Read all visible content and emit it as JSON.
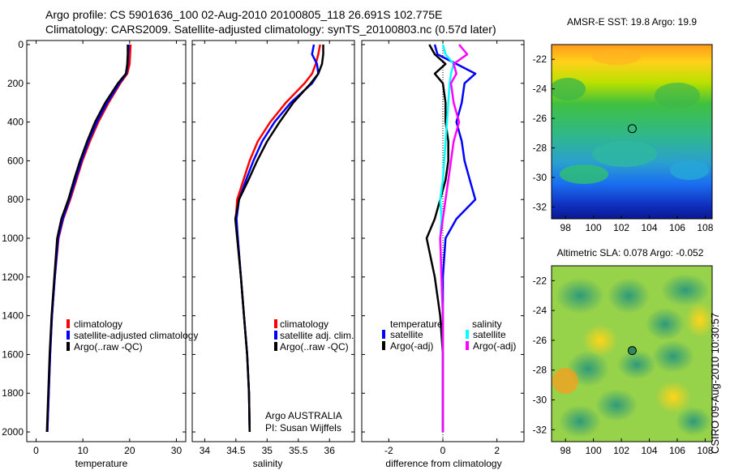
{
  "header": {
    "title_line1": "Argo profile: CS 5901636_100 02-Aug-2010 20100805_118 26.691S 102.775E",
    "title_line2": "Climatology: CARS2009. Satellite-adjusted climatology: synTS_20100803.nc (0.57d later)"
  },
  "footer": {
    "credit": "CSIRO 09-Aug-2010 10:30:57"
  },
  "colors": {
    "climatology": "#ff0000",
    "satellite": "#0000ff",
    "argo": "#000000",
    "salinity_satellite": "#00ffff",
    "salinity_argo_adj": "#ff00ff"
  },
  "chart_data": [
    {
      "type": "line",
      "xlabel": "temperature",
      "ylabel": "",
      "xlim": [
        -2,
        32
      ],
      "ylim": [
        2050,
        0
      ],
      "xticks": [
        0,
        10,
        20,
        30
      ],
      "yticks": [
        0,
        200,
        400,
        600,
        800,
        1000,
        1200,
        1400,
        1600,
        1800,
        2000
      ],
      "depth": [
        0,
        50,
        100,
        150,
        200,
        300,
        400,
        500,
        600,
        700,
        800,
        900,
        1000,
        1200,
        1400,
        1600,
        1800,
        2000
      ],
      "series": [
        {
          "name": "climatology",
          "values": [
            20.2,
            20.1,
            20.0,
            19.5,
            18.0,
            15.5,
            13.3,
            11.5,
            9.9,
            8.6,
            7.3,
            5.8,
            4.8,
            4.0,
            3.4,
            3.0,
            2.7,
            2.4
          ]
        },
        {
          "name": "satellite-adjusted climatology",
          "values": [
            19.8,
            19.7,
            19.6,
            19.3,
            17.8,
            15.2,
            13.0,
            11.2,
            9.7,
            8.4,
            7.1,
            5.7,
            4.7,
            4.0,
            3.4,
            3.0,
            2.7,
            2.4
          ]
        },
        {
          "name": "Argo(..raw -QC)",
          "values": [
            19.6,
            19.6,
            19.5,
            19.2,
            17.5,
            14.8,
            12.6,
            10.9,
            9.4,
            8.1,
            6.9,
            5.4,
            4.5,
            3.9,
            3.3,
            2.9,
            2.6,
            2.3
          ]
        }
      ],
      "legend": [
        "climatology",
        "satellite-adjusted climatology",
        "Argo(..raw -QC)"
      ]
    },
    {
      "type": "line",
      "xlabel": "salinity",
      "ylabel": "",
      "xlim": [
        33.8,
        36.4
      ],
      "ylim": [
        2050,
        0
      ],
      "xticks": [
        34,
        34.5,
        35,
        35.5,
        36
      ],
      "xtick_labels": [
        "34",
        "34.5",
        "35",
        "35.5",
        "36"
      ],
      "depth": [
        0,
        50,
        100,
        150,
        200,
        300,
        400,
        500,
        600,
        700,
        800,
        900,
        1000,
        1200,
        1400,
        1600,
        1800,
        2000
      ],
      "series": [
        {
          "name": "climatology",
          "values": [
            35.85,
            35.82,
            35.78,
            35.72,
            35.6,
            35.3,
            35.05,
            34.85,
            34.72,
            34.62,
            34.52,
            34.5,
            34.53,
            34.58,
            34.63,
            34.68,
            34.71,
            34.72
          ]
        },
        {
          "name": "satellite adj. clim.",
          "values": [
            35.75,
            35.72,
            35.8,
            35.82,
            35.72,
            35.38,
            35.12,
            34.92,
            34.78,
            34.66,
            34.55,
            34.51,
            34.53,
            34.58,
            34.63,
            34.68,
            34.71,
            34.72
          ]
        },
        {
          "name": "Argo(..raw -QC)",
          "values": [
            35.9,
            35.9,
            35.88,
            35.82,
            35.7,
            35.42,
            35.2,
            35.0,
            34.84,
            34.7,
            34.55,
            34.49,
            34.52,
            34.58,
            34.63,
            34.68,
            34.71,
            34.72
          ]
        }
      ],
      "legend": [
        "climatology",
        "satellite adj. clim.",
        "Argo(..raw -QC)"
      ],
      "annotations": [
        "Argo AUSTRALIA",
        "PI: Susan Wijffels"
      ]
    },
    {
      "type": "line",
      "xlabel": "difference from climatology",
      "ylabel": "",
      "xlim": [
        -3,
        3
      ],
      "ylim": [
        2050,
        0
      ],
      "xticks": [
        -2,
        0,
        2
      ],
      "depth": [
        0,
        50,
        100,
        150,
        200,
        300,
        400,
        500,
        600,
        700,
        800,
        900,
        1000,
        1200,
        1400,
        1600,
        1800,
        2000
      ],
      "series": [
        {
          "name": "temperature satellite",
          "values": [
            -0.3,
            -0.2,
            0.5,
            1.2,
            0.8,
            0.7,
            0.5,
            0.7,
            0.8,
            1.0,
            1.2,
            0.5,
            0.1,
            0.0,
            0.0,
            0.0,
            0.0,
            0.0
          ]
        },
        {
          "name": "temperature Argo(-adj)",
          "values": [
            -0.5,
            -0.3,
            0.1,
            -0.3,
            0.0,
            0.1,
            0.1,
            0.2,
            0.2,
            0.1,
            -0.1,
            -0.3,
            -0.6,
            -0.3,
            -0.1,
            0.0,
            0.0,
            0.0
          ]
        },
        {
          "name": "salinity satellite",
          "values": [
            0.0,
            0.1,
            0.4,
            0.3,
            0.25,
            0.2,
            0.15,
            0.1,
            0.05,
            0.0,
            -0.1,
            -0.05,
            -0.1,
            -0.05,
            0.0,
            0.0,
            0.0,
            0.0
          ]
        },
        {
          "name": "salinity Argo(-adj)",
          "values": [
            0.6,
            0.9,
            0.4,
            0.5,
            0.3,
            0.4,
            0.6,
            0.4,
            0.3,
            0.2,
            0.1,
            0.0,
            -0.1,
            -0.05,
            0.0,
            0.0,
            0.0,
            0.0
          ]
        }
      ],
      "legend_headings": [
        "temperature",
        "salinity"
      ],
      "legend": [
        "satellite",
        "Argo(-adj)",
        "satellite",
        "Argo(-adj)"
      ]
    },
    {
      "type": "heatmap",
      "title": "AMSR-E SST: 19.8 Argo: 19.9",
      "xlim": [
        97,
        108.5
      ],
      "ylim": [
        -32.8,
        -21
      ],
      "xticks": [
        98,
        100,
        102,
        104,
        106,
        108
      ],
      "yticks": [
        -22,
        -24,
        -26,
        -28,
        -30,
        -32
      ],
      "marker": {
        "lon": 102.775,
        "lat": -26.691
      }
    },
    {
      "type": "heatmap",
      "title": "Altimetric SLA: 0.078 Argo: -0.052",
      "xlim": [
        97,
        108.5
      ],
      "ylim": [
        -32.8,
        -21
      ],
      "xticks": [
        98,
        100,
        102,
        104,
        106,
        108
      ],
      "yticks": [
        -22,
        -24,
        -26,
        -28,
        -30,
        -32
      ],
      "marker": {
        "lon": 102.775,
        "lat": -26.691
      }
    }
  ]
}
